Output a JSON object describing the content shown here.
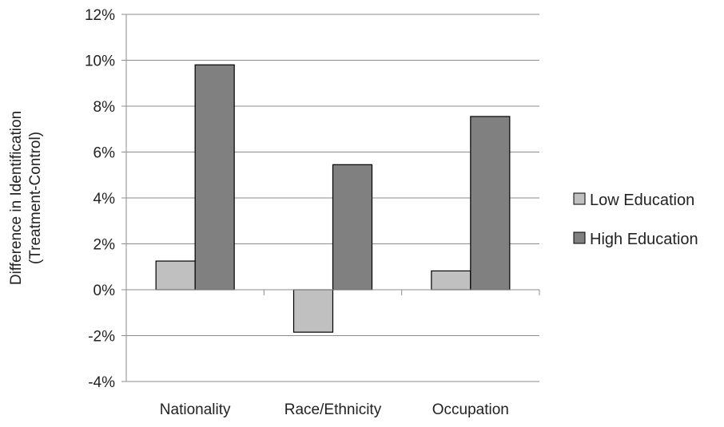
{
  "chart_data": {
    "type": "bar",
    "title": "",
    "xlabel": "",
    "ylabel_lines": [
      "Difference in Identification",
      "(Treatment-Control)"
    ],
    "categories": [
      "Nationality",
      "Race/Ethnicity",
      "Occupation"
    ],
    "series": [
      {
        "name": "Low Education",
        "values": [
          1.25,
          -1.85,
          0.82
        ],
        "color": "#c0c0c0"
      },
      {
        "name": "High Education",
        "values": [
          9.8,
          5.45,
          7.55
        ],
        "color": "#808080"
      }
    ],
    "ylim": [
      -4,
      12
    ],
    "yticks": [
      -4,
      -2,
      0,
      2,
      4,
      6,
      8,
      10,
      12
    ],
    "ytick_labels": [
      "-4%",
      "-2%",
      "0%",
      "2%",
      "4%",
      "6%",
      "8%",
      "10%",
      "12%"
    ],
    "grid": true,
    "legend_position": "right"
  }
}
